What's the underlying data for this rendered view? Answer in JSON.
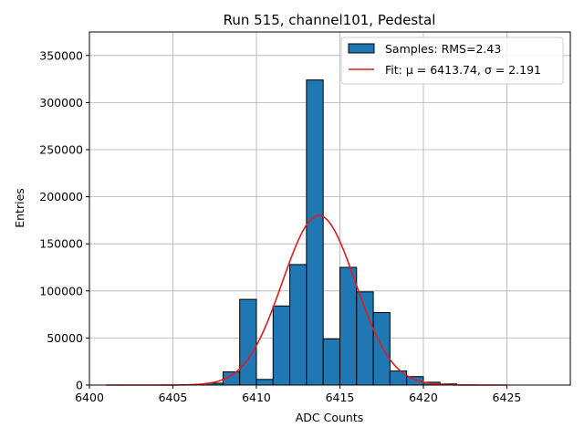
{
  "chart_data": {
    "type": "bar",
    "title": "Run 515, channel101, Pedestal",
    "xlabel": "ADC Counts",
    "ylabel": "Entries",
    "xlim": [
      6400,
      6428.8
    ],
    "ylim": [
      0,
      375000
    ],
    "xticks": [
      "6400",
      "6405",
      "6410",
      "6415",
      "6420",
      "6425"
    ],
    "yticks": [
      "0",
      "50000",
      "100000",
      "150000",
      "200000",
      "250000",
      "300000",
      "350000"
    ],
    "grid": true,
    "legend_position": "top-right",
    "bin_width": 1,
    "bins": [
      {
        "x": 6407,
        "value": 2000
      },
      {
        "x": 6408,
        "value": 14000
      },
      {
        "x": 6409,
        "value": 91000
      },
      {
        "x": 6410,
        "value": 6000
      },
      {
        "x": 6411,
        "value": 84000
      },
      {
        "x": 6412,
        "value": 128000
      },
      {
        "x": 6413,
        "value": 324000
      },
      {
        "x": 6414,
        "value": 49000
      },
      {
        "x": 6415,
        "value": 125000
      },
      {
        "x": 6416,
        "value": 99000
      },
      {
        "x": 6417,
        "value": 77000
      },
      {
        "x": 6418,
        "value": 15000
      },
      {
        "x": 6419,
        "value": 9000
      },
      {
        "x": 6420,
        "value": 3000
      },
      {
        "x": 6421,
        "value": 1200
      }
    ],
    "fit": {
      "mu": 6413.74,
      "sigma": 2.191,
      "amplitude": 180000,
      "x_range": [
        6401,
        6425
      ]
    },
    "series": [
      {
        "name": "Samples: RMS=2.43",
        "color": "#1f77b4",
        "kind": "histogram"
      },
      {
        "name": "Fit: μ = 6413.74, σ = 2.191",
        "color": "#e41a1c",
        "kind": "line"
      }
    ]
  }
}
